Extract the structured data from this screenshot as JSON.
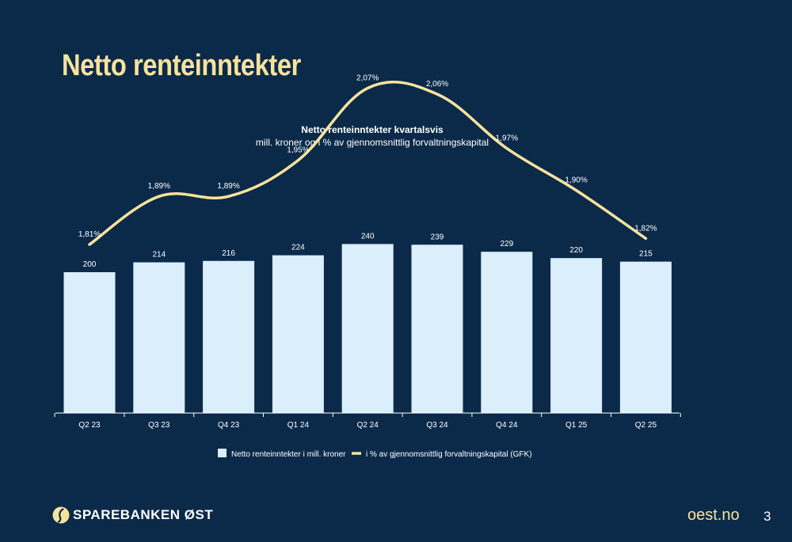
{
  "slide": {
    "title": "Netto renteinntekter",
    "website": "oest.no",
    "page_number": "3",
    "brand": "SPAREBANKEN ØST"
  },
  "colors": {
    "background": "#0b2a4a",
    "title": "#f8e39c",
    "bar": "#dbeefb",
    "line": "#f8e39c",
    "text": "#ffffff"
  },
  "chart_data": {
    "type": "bar",
    "title": "Netto renteinntekter kvartalsvis",
    "subtitle": "mill. kroner og i % av gjennomsnittlig forvaltningskapital",
    "categories": [
      "Q2 23",
      "Q3 23",
      "Q4 23",
      "Q1 24",
      "Q2 24",
      "Q3 24",
      "Q4 24",
      "Q1 25",
      "Q2 25"
    ],
    "ylim": [
      0,
      300
    ],
    "grid": false,
    "legend_position": "bottom",
    "series": [
      {
        "name": "Netto renteinntekter i mill. kroner",
        "type": "bar",
        "values": [
          200,
          214,
          216,
          224,
          240,
          239,
          229,
          220,
          215
        ],
        "labels": [
          "200",
          "214",
          "216",
          "224",
          "240",
          "239",
          "229",
          "220",
          "215"
        ]
      },
      {
        "name": "i % av gjennomsnittlig forvaltningskapital (GFK)",
        "type": "line",
        "values": [
          1.81,
          1.89,
          1.89,
          1.95,
          2.07,
          2.06,
          1.97,
          1.9,
          1.82
        ],
        "labels": [
          "1,81%",
          "1,89%",
          "1,89%",
          "1,95%",
          "2,07%",
          "2,06%",
          "1,97%",
          "1,90%",
          "1,82%"
        ]
      }
    ]
  }
}
